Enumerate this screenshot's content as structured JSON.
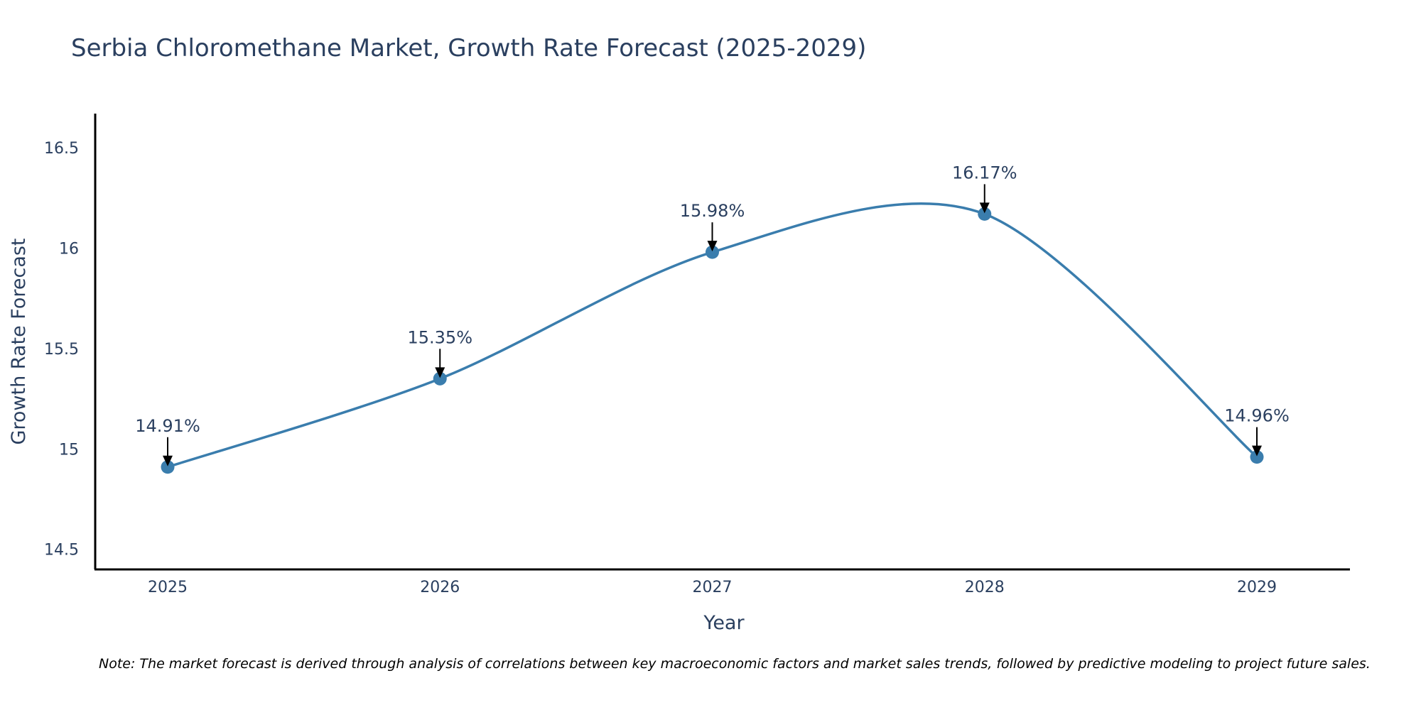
{
  "chart_data": {
    "type": "line",
    "title": "Serbia Chloromethane Market, Growth Rate Forecast (2025-2029)",
    "xlabel": "Year",
    "ylabel": "Growth Rate Forecast",
    "categories": [
      "2025",
      "2026",
      "2027",
      "2028",
      "2029"
    ],
    "values": [
      14.91,
      15.35,
      15.98,
      16.17,
      14.96
    ],
    "data_labels": [
      "14.91%",
      "15.35%",
      "15.98%",
      "16.17%",
      "14.96%"
    ],
    "ylim": [
      14.4,
      16.67
    ],
    "yticks": [
      14.5,
      15,
      15.5,
      16,
      16.5
    ],
    "ytick_labels": [
      "14.5",
      "15",
      "15.5",
      "16",
      "16.5"
    ],
    "line_shape": "spline",
    "grid": false,
    "series_color": "#3a7dad",
    "note": "Note: The market forecast is derived through analysis of correlations between key macroeconomic factors and market sales trends, followed by predictive modeling to project future sales."
  }
}
